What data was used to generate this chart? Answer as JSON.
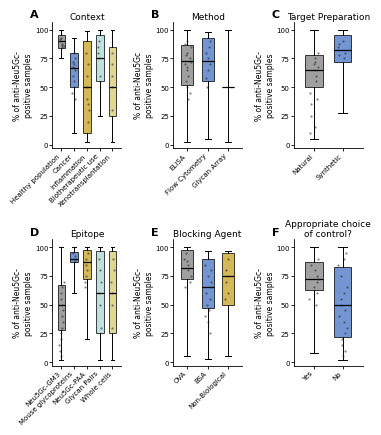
{
  "panels": {
    "A": {
      "title": "Context",
      "ylabel": "% of anti-Neu5Gc-\npositive samples",
      "categories": [
        "Healthy population",
        "Cancer",
        "Inflammation",
        "Biotherapeutic use",
        "Xenotransplantation"
      ],
      "colors": [
        "#808080",
        "#4472c4",
        "#c8a020",
        "#a8d8d8",
        "#d4cc70"
      ],
      "boxes": [
        {
          "med": 90,
          "q1": 84,
          "q3": 95,
          "whislo": 75,
          "whishi": 100,
          "fliers": [],
          "dots": [
            88,
            90,
            92,
            85,
            87,
            93,
            86
          ]
        },
        {
          "med": 67,
          "q1": 50,
          "q3": 80,
          "whislo": 10,
          "whishi": 93,
          "fliers": [
            28,
            30,
            35
          ],
          "dots": [
            65,
            70,
            55,
            60,
            75,
            80,
            45,
            50,
            40,
            68,
            72
          ]
        },
        {
          "med": 50,
          "q1": 10,
          "q3": 90,
          "whislo": 2,
          "whishi": 99,
          "fliers": [],
          "dots": [
            50,
            40,
            35,
            30,
            20,
            60,
            70,
            80
          ]
        },
        {
          "med": 75,
          "q1": 55,
          "q3": 95,
          "whislo": 25,
          "whishi": 100,
          "fliers": [],
          "dots": [
            75,
            80,
            90,
            60,
            85
          ]
        },
        {
          "med": 50,
          "q1": 25,
          "q3": 85,
          "whislo": 2,
          "whishi": 100,
          "fliers": [],
          "dots": [
            50,
            60,
            30,
            70,
            80
          ]
        }
      ]
    },
    "B": {
      "title": "Method",
      "ylabel": "% of anti-Neu5Gc\npositive samples",
      "categories": [
        "ELISA",
        "Flow Cytometry",
        "Glycan Array"
      ],
      "colors": [
        "#808080",
        "#4472c4",
        "#c8a020"
      ],
      "boxes": [
        {
          "med": 73,
          "q1": 52,
          "q3": 87,
          "whislo": 2,
          "whishi": 100,
          "fliers": [],
          "dots": [
            80,
            75,
            85,
            65,
            60,
            70,
            55,
            90,
            45,
            78,
            68,
            72,
            50,
            40,
            88
          ]
        },
        {
          "med": 73,
          "q1": 55,
          "q3": 93,
          "whislo": 5,
          "whishi": 98,
          "fliers": [],
          "dots": [
            70,
            65,
            75,
            80,
            58,
            50,
            85,
            90
          ]
        },
        {
          "med": 50,
          "q1": 50,
          "q3": 50,
          "whislo": 2,
          "whishi": 100,
          "fliers": [],
          "dots": []
        }
      ]
    },
    "C": {
      "title": "Target Preparation",
      "ylabel": "% of anti-Neu5Gc-\npositive samples",
      "categories": [
        "Natural",
        "Synthetic"
      ],
      "colors": [
        "#808080",
        "#4472c4"
      ],
      "boxes": [
        {
          "med": 65,
          "q1": 50,
          "q3": 78,
          "whislo": 5,
          "whishi": 100,
          "fliers": [],
          "dots": [
            70,
            60,
            65,
            75,
            55,
            80,
            45,
            40,
            35,
            25,
            15,
            10,
            68,
            72
          ]
        },
        {
          "med": 82,
          "q1": 72,
          "q3": 95,
          "whislo": 28,
          "whishi": 100,
          "fliers": [],
          "dots": [
            80,
            85,
            75,
            90,
            78,
            88
          ]
        }
      ]
    },
    "D": {
      "title": "Epitope",
      "ylabel": "% of anti-Neu5Gc-\npositive samples",
      "categories": [
        "Neu5Gc-GM3",
        "Mouse glycoproteins",
        "Neu5Gc-PAA",
        "Glycan Pairs",
        "Whole cells"
      ],
      "colors": [
        "#808080",
        "#4472c4",
        "#c8a020",
        "#a8d8d8",
        "#d4cc70"
      ],
      "boxes": [
        {
          "med": 50,
          "q1": 28,
          "q3": 67,
          "whislo": 2,
          "whishi": 100,
          "fliers": [],
          "dots": [
            50,
            60,
            40,
            30,
            55,
            45,
            35,
            20,
            15,
            10,
            5,
            65,
            70,
            25
          ]
        },
        {
          "med": 90,
          "q1": 87,
          "q3": 96,
          "whislo": 60,
          "whishi": 100,
          "fliers": [],
          "dots": [
            90,
            92,
            88,
            95
          ]
        },
        {
          "med": 87,
          "q1": 72,
          "q3": 98,
          "whislo": 20,
          "whishi": 100,
          "fliers": [],
          "dots": [
            85,
            90,
            75,
            80,
            95,
            70,
            65
          ]
        },
        {
          "med": 60,
          "q1": 25,
          "q3": 97,
          "whislo": 2,
          "whishi": 100,
          "fliers": [],
          "dots": [
            60,
            50,
            70,
            80,
            30,
            90
          ]
        },
        {
          "med": 60,
          "q1": 25,
          "q3": 97,
          "whislo": 2,
          "whishi": 100,
          "fliers": [],
          "dots": [
            60,
            50,
            70,
            80,
            30,
            90
          ]
        }
      ]
    },
    "E": {
      "title": "Blocking Agent",
      "ylabel": "% of anti-Neu5Gc-\npositive samples",
      "categories": [
        "OVA",
        "BSA",
        "Non-Biological"
      ],
      "colors": [
        "#808080",
        "#4472c4",
        "#c8a020"
      ],
      "boxes": [
        {
          "med": 82,
          "q1": 72,
          "q3": 98,
          "whislo": 5,
          "whishi": 100,
          "fliers": [],
          "dots": [
            80,
            85,
            90,
            75,
            70,
            65,
            95,
            88
          ]
        },
        {
          "med": 65,
          "q1": 47,
          "q3": 90,
          "whislo": 3,
          "whishi": 97,
          "fliers": [],
          "dots": [
            65,
            70,
            60,
            75,
            55,
            50,
            45,
            40,
            35,
            25,
            80,
            85
          ]
        },
        {
          "med": 75,
          "q1": 50,
          "q3": 95,
          "whislo": 5,
          "whishi": 97,
          "fliers": [],
          "dots": [
            75,
            80,
            60,
            90,
            55,
            70
          ]
        }
      ]
    },
    "F": {
      "title": "Appropriate choice\nof control?",
      "ylabel": "% of anti-Neu5Gc-\npositive samples",
      "categories": [
        "Yes",
        "No"
      ],
      "colors": [
        "#808080",
        "#4472c4"
      ],
      "boxes": [
        {
          "med": 72,
          "q1": 63,
          "q3": 87,
          "whislo": 8,
          "whishi": 100,
          "fliers": [],
          "dots": [
            72,
            80,
            65,
            75,
            60,
            55,
            50,
            90,
            85,
            70
          ]
        },
        {
          "med": 50,
          "q1": 22,
          "q3": 83,
          "whislo": 2,
          "whishi": 100,
          "fliers": [],
          "dots": [
            50,
            55,
            60,
            40,
            35,
            30,
            25,
            20,
            15,
            10,
            5,
            85,
            90,
            95,
            75,
            65,
            45
          ]
        }
      ]
    }
  },
  "background_color": "#ffffff",
  "label_fontsize": 5.5,
  "title_fontsize": 6.5,
  "tick_fontsize": 5.0,
  "panel_label_fontsize": 8
}
